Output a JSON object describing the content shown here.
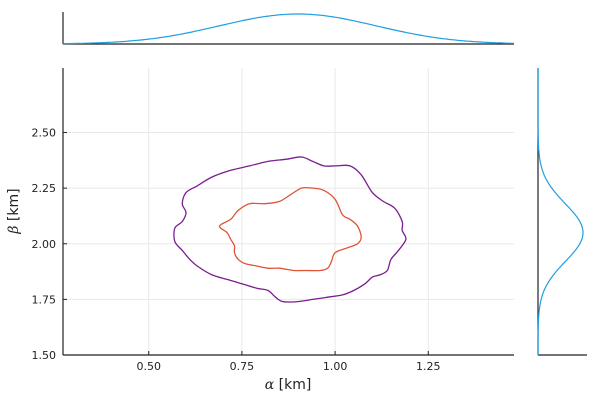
{
  "chart_data": {
    "type": "contour",
    "main": {
      "xlabel_symbol": "α",
      "xlabel_unit": " [km]",
      "ylabel_symbol": "β",
      "ylabel_unit": " [km]",
      "xlim": [
        0.27,
        1.48
      ],
      "ylim": [
        1.5,
        2.79
      ],
      "xticks": [
        0.5,
        0.75,
        1.0,
        1.25
      ],
      "xtick_labels": [
        "0.50",
        "0.75",
        "1.00",
        "1.25"
      ],
      "yticks": [
        1.5,
        1.75,
        2.0,
        2.25,
        2.5
      ],
      "ytick_labels": [
        "1.50",
        "1.75",
        "2.00",
        "2.25",
        "2.50"
      ],
      "grid": true,
      "contours": [
        {
          "level": "outer",
          "color": "#7a1f8f",
          "points": [
            [
              0.6,
              2.23
            ],
            [
              0.63,
              2.26
            ],
            [
              0.67,
              2.3
            ],
            [
              0.72,
              2.33
            ],
            [
              0.77,
              2.35
            ],
            [
              0.82,
              2.37
            ],
            [
              0.87,
              2.38
            ],
            [
              0.91,
              2.39
            ],
            [
              0.94,
              2.37
            ],
            [
              0.97,
              2.35
            ],
            [
              1.0,
              2.35
            ],
            [
              1.04,
              2.35
            ],
            [
              1.07,
              2.31
            ],
            [
              1.1,
              2.23
            ],
            [
              1.13,
              2.19
            ],
            [
              1.16,
              2.16
            ],
            [
              1.18,
              2.1
            ],
            [
              1.18,
              2.06
            ],
            [
              1.19,
              2.02
            ],
            [
              1.17,
              1.97
            ],
            [
              1.15,
              1.93
            ],
            [
              1.14,
              1.88
            ],
            [
              1.12,
              1.86
            ],
            [
              1.1,
              1.85
            ],
            [
              1.08,
              1.82
            ],
            [
              1.05,
              1.79
            ],
            [
              1.02,
              1.77
            ],
            [
              0.98,
              1.76
            ],
            [
              0.94,
              1.75
            ],
            [
              0.9,
              1.74
            ],
            [
              0.86,
              1.74
            ],
            [
              0.84,
              1.76
            ],
            [
              0.82,
              1.79
            ],
            [
              0.79,
              1.8
            ],
            [
              0.75,
              1.82
            ],
            [
              0.71,
              1.84
            ],
            [
              0.67,
              1.86
            ],
            [
              0.63,
              1.9
            ],
            [
              0.61,
              1.93
            ],
            [
              0.59,
              1.97
            ],
            [
              0.57,
              2.01
            ],
            [
              0.57,
              2.07
            ],
            [
              0.59,
              2.1
            ],
            [
              0.6,
              2.14
            ],
            [
              0.59,
              2.18
            ]
          ]
        },
        {
          "level": "inner",
          "color": "#e0543a",
          "points": [
            [
              0.72,
              2.11
            ],
            [
              0.74,
              2.15
            ],
            [
              0.77,
              2.18
            ],
            [
              0.81,
              2.18
            ],
            [
              0.85,
              2.19
            ],
            [
              0.88,
              2.22
            ],
            [
              0.91,
              2.25
            ],
            [
              0.94,
              2.25
            ],
            [
              0.97,
              2.24
            ],
            [
              1.0,
              2.2
            ],
            [
              1.02,
              2.13
            ],
            [
              1.04,
              2.11
            ],
            [
              1.06,
              2.08
            ],
            [
              1.07,
              2.03
            ],
            [
              1.06,
              2.0
            ],
            [
              1.03,
              1.98
            ],
            [
              1.0,
              1.96
            ],
            [
              0.99,
              1.92
            ],
            [
              0.98,
              1.89
            ],
            [
              0.96,
              1.88
            ],
            [
              0.92,
              1.88
            ],
            [
              0.89,
              1.88
            ],
            [
              0.85,
              1.89
            ],
            [
              0.82,
              1.89
            ],
            [
              0.79,
              1.9
            ],
            [
              0.76,
              1.91
            ],
            [
              0.74,
              1.93
            ],
            [
              0.73,
              1.96
            ],
            [
              0.73,
              1.99
            ],
            [
              0.72,
              2.02
            ],
            [
              0.71,
              2.05
            ],
            [
              0.69,
              2.08
            ]
          ]
        }
      ]
    },
    "top_marginal": {
      "color": "#1f9ee0",
      "mean": 0.9,
      "sd": 0.21
    },
    "right_marginal": {
      "color": "#1f9ee0",
      "mean": 2.05,
      "sd": 0.13
    }
  }
}
